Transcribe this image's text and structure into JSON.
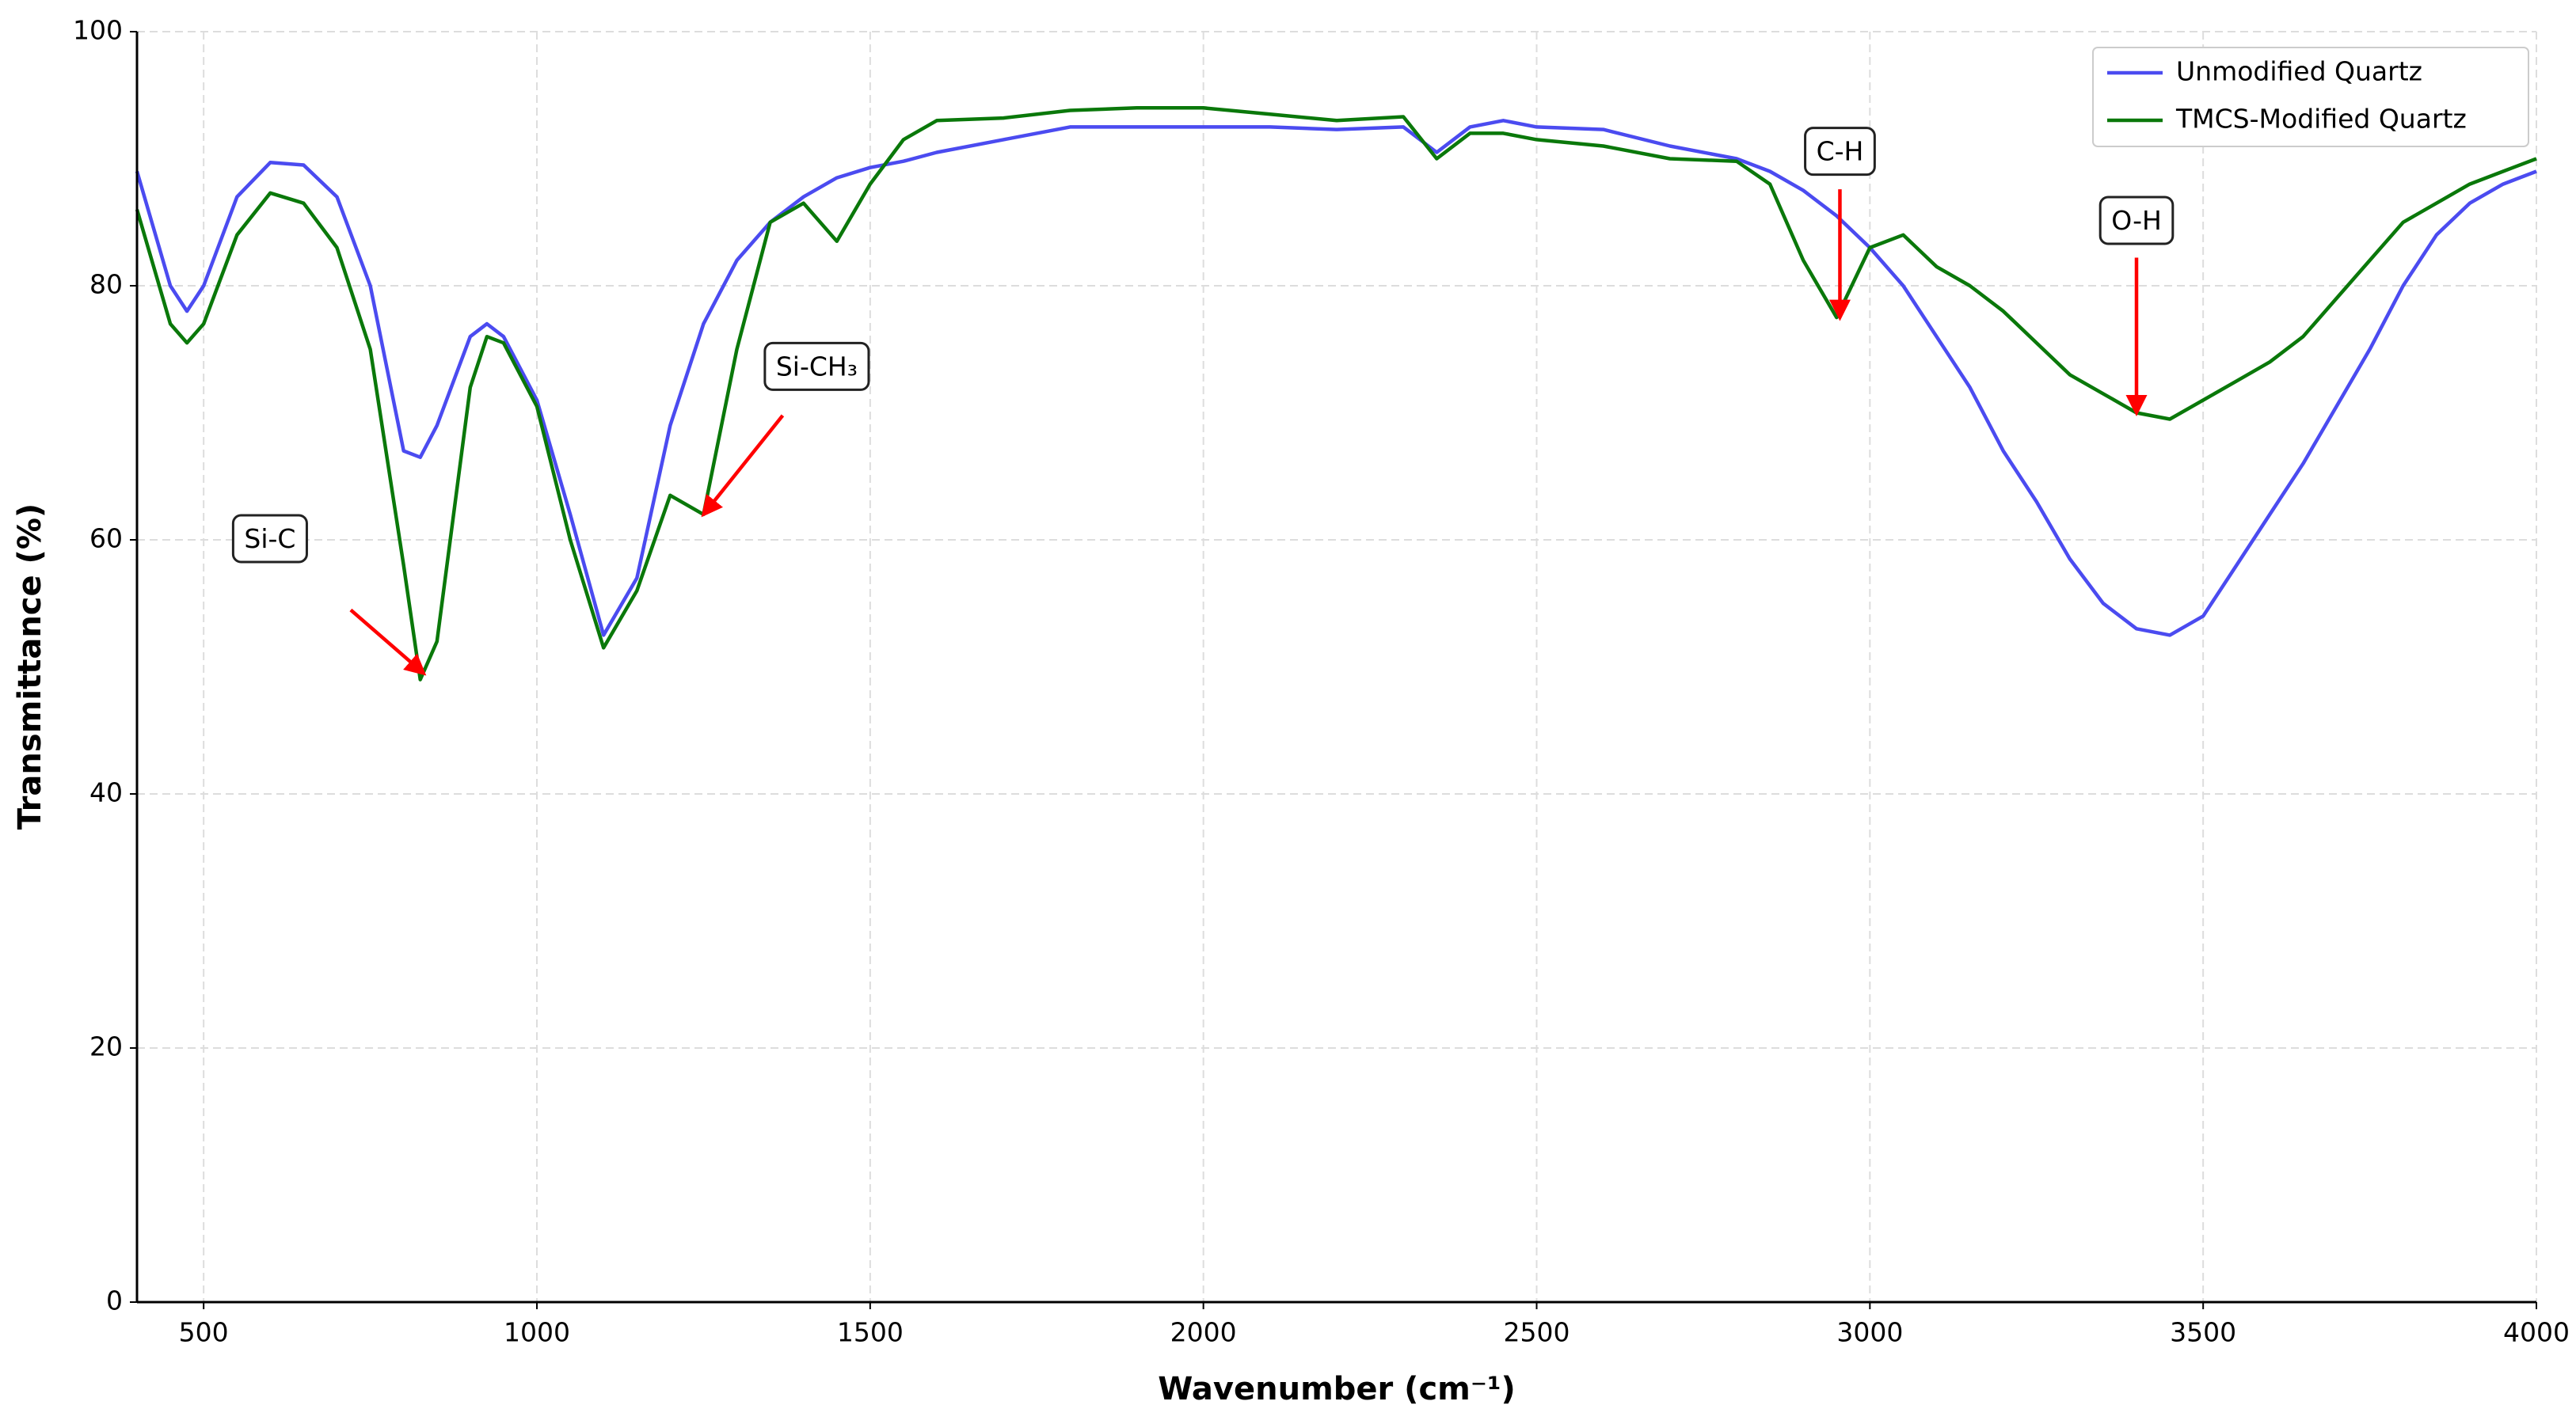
{
  "chart_data": {
    "type": "line",
    "x_label": "Wavenumber (cm⁻¹)",
    "y_label": "Transmittance (%)",
    "x": [
      400,
      450,
      475,
      500,
      550,
      600,
      650,
      700,
      750,
      800,
      825,
      850,
      900,
      925,
      950,
      1000,
      1050,
      1100,
      1150,
      1200,
      1250,
      1300,
      1350,
      1400,
      1450,
      1500,
      1550,
      1600,
      1700,
      1800,
      1900,
      2000,
      2100,
      2200,
      2300,
      2350,
      2400,
      2450,
      2500,
      2600,
      2700,
      2800,
      2850,
      2900,
      2950,
      3000,
      3050,
      3100,
      3150,
      3200,
      3250,
      3300,
      3350,
      3400,
      3450,
      3500,
      3550,
      3600,
      3650,
      3700,
      3750,
      3800,
      3850,
      3900,
      3950,
      4000
    ],
    "series": [
      {
        "name": "Unmodified Quartz",
        "color": "#4b4bf0",
        "values": [
          89,
          80,
          78,
          80,
          87,
          89.7,
          89.5,
          87,
          80,
          67,
          66.5,
          69,
          76,
          77,
          76,
          71,
          62,
          52.5,
          57,
          69,
          77,
          82,
          85,
          87,
          88.5,
          89.3,
          89.8,
          90.5,
          91.5,
          92.5,
          92.5,
          92.5,
          92.5,
          92.3,
          92.5,
          90.5,
          92.5,
          93,
          92.5,
          92.3,
          91,
          90,
          89,
          87.5,
          85.5,
          83,
          80,
          76,
          72,
          67,
          63,
          58.5,
          55,
          53,
          52.5,
          54,
          58,
          62,
          66,
          70.5,
          75,
          80,
          84,
          86.5,
          88,
          89
        ]
      },
      {
        "name": "TMCS-Modified Quartz",
        "color": "#0a780a",
        "values": [
          86,
          77,
          75.5,
          77,
          84,
          87.3,
          86.5,
          83,
          75,
          58,
          49,
          52,
          72,
          76,
          75.5,
          70.5,
          60,
          51.5,
          56,
          63.5,
          62,
          75,
          85,
          86.5,
          83.5,
          88,
          91.5,
          93,
          93.2,
          93.8,
          94,
          94,
          93.5,
          93,
          93.3,
          90,
          92,
          92,
          91.5,
          91,
          90,
          89.8,
          88,
          82,
          77.5,
          83,
          84,
          81.5,
          80,
          78,
          75.5,
          73,
          71.5,
          70,
          69.5,
          71,
          72.5,
          74,
          76,
          79,
          82,
          85,
          86.5,
          88,
          89,
          90
        ]
      }
    ],
    "xlim": [
      400,
      4000
    ],
    "ylim": [
      0,
      100
    ],
    "xticks": [
      500,
      1000,
      1500,
      2000,
      2500,
      3000,
      3500,
      4000
    ],
    "yticks": [
      0,
      20,
      40,
      60,
      80,
      100
    ],
    "grid": true,
    "legend": "upper right",
    "annotations": [
      {
        "text": "Si-C",
        "xy": [
          830,
          49.5
        ]
      },
      {
        "text": "Si-CH₃",
        "xy": [
          1250,
          62
        ]
      },
      {
        "text": "C-H",
        "xy": [
          2955,
          77.5
        ]
      },
      {
        "text": "O-H",
        "xy": [
          3400,
          70
        ]
      }
    ]
  }
}
